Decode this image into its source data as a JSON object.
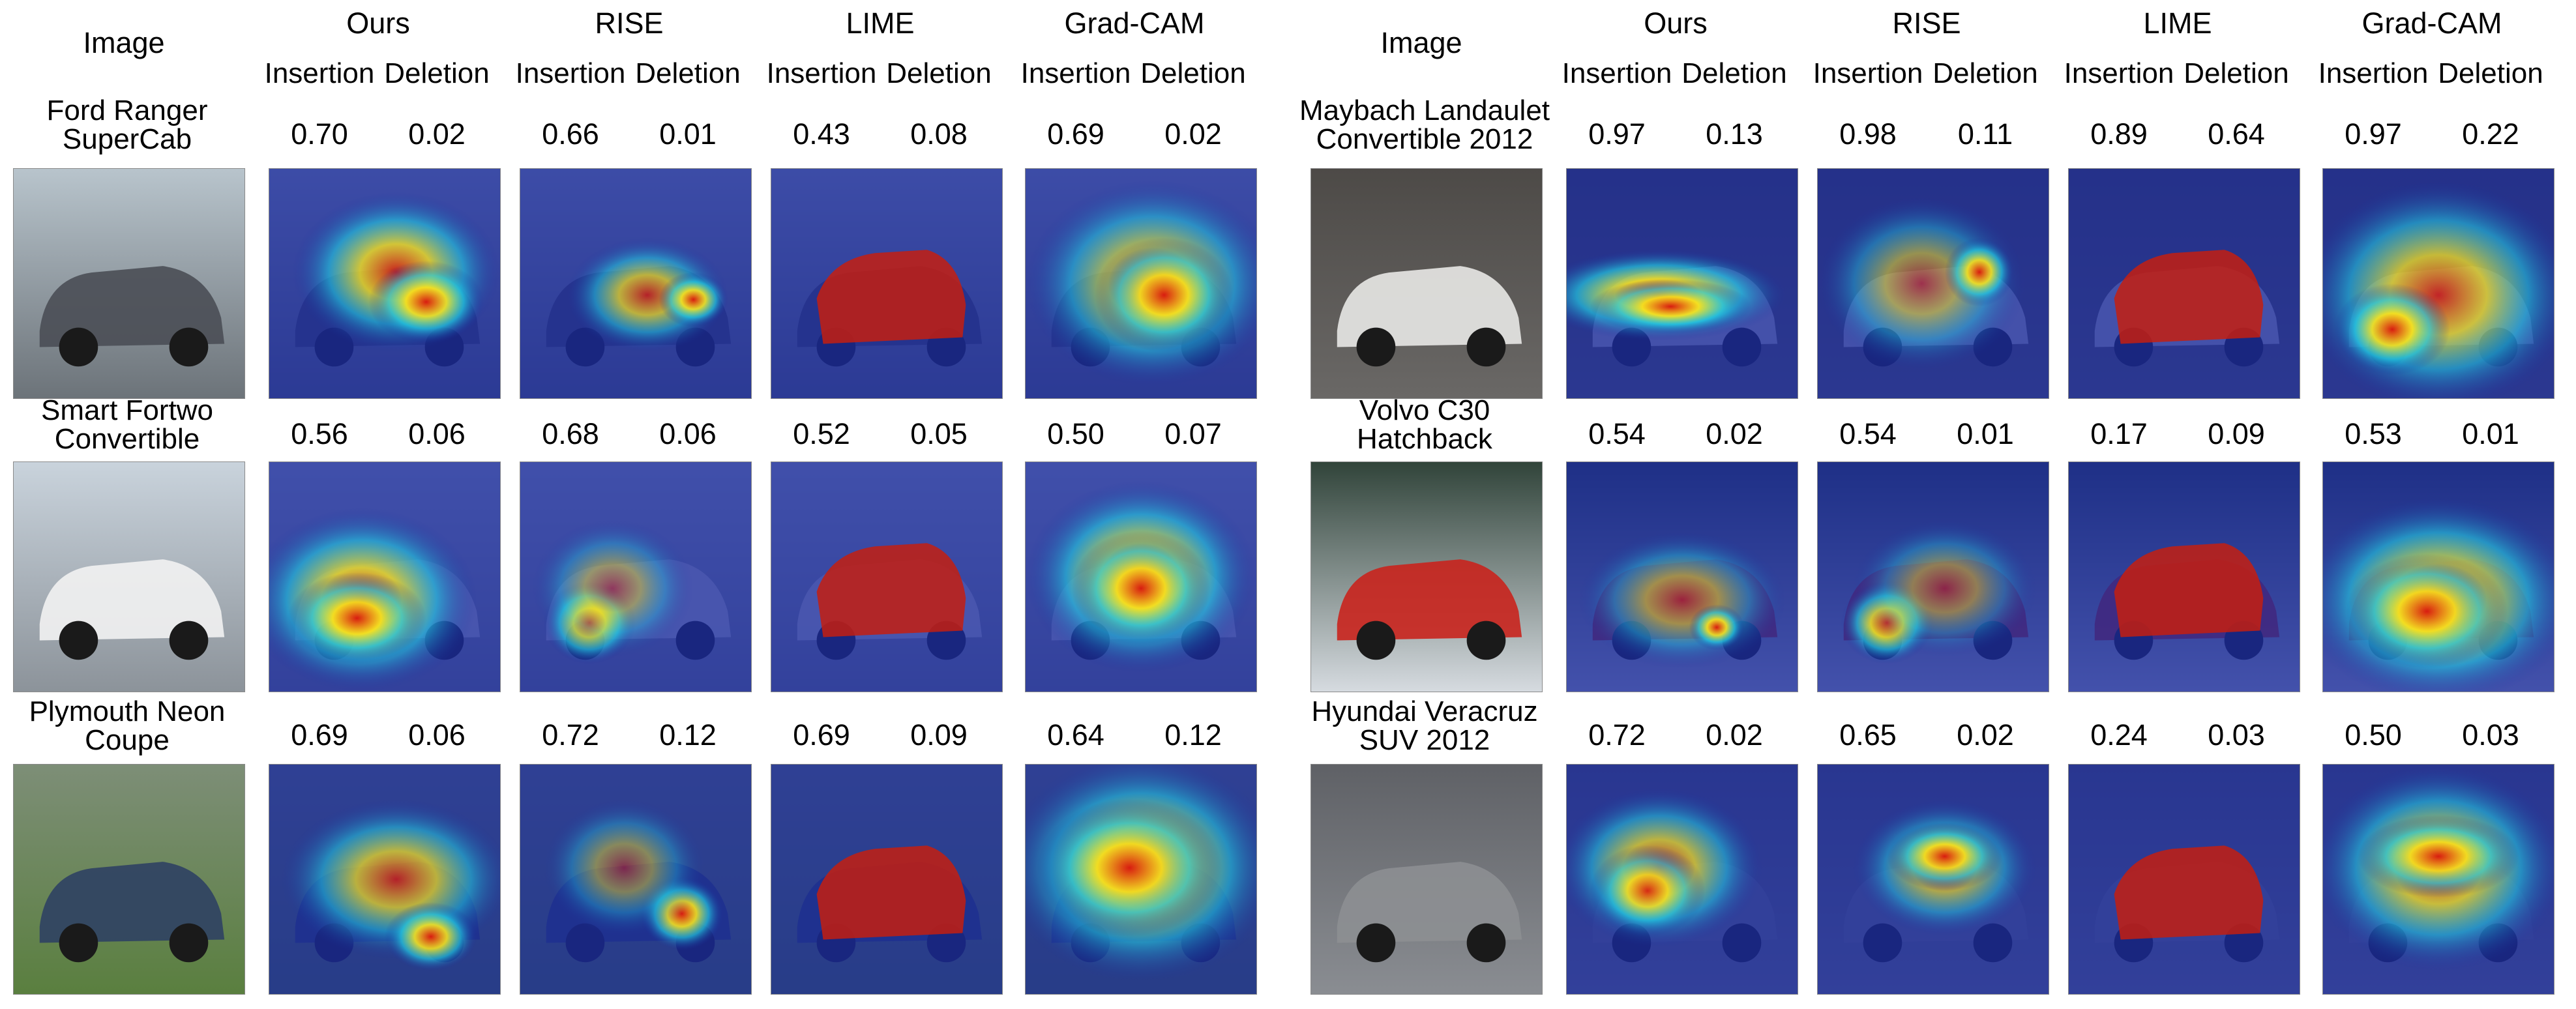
{
  "columns": {
    "image": "Image",
    "methods": [
      "Ours",
      "RISE",
      "LIME",
      "Grad-CAM"
    ],
    "metrics": [
      "Insertion",
      "Deletion"
    ]
  },
  "panels": [
    {
      "rows": [
        {
          "label": [
            "Ford Ranger",
            "SuperCab"
          ],
          "scores": [
            [
              "0.70",
              "0.02"
            ],
            [
              "0.66",
              "0.01"
            ],
            [
              "0.43",
              "0.08"
            ],
            [
              "0.69",
              "0.02"
            ]
          ]
        },
        {
          "label": [
            "Smart Fortwo",
            "Convertible"
          ],
          "scores": [
            [
              "0.56",
              "0.06"
            ],
            [
              "0.68",
              "0.06"
            ],
            [
              "0.52",
              "0.05"
            ],
            [
              "0.50",
              "0.07"
            ]
          ]
        },
        {
          "label": [
            "Plymouth Neon",
            "Coupe"
          ],
          "scores": [
            [
              "0.69",
              "0.06"
            ],
            [
              "0.72",
              "0.12"
            ],
            [
              "0.69",
              "0.09"
            ],
            [
              "0.64",
              "0.12"
            ]
          ]
        }
      ]
    },
    {
      "rows": [
        {
          "label": [
            "Maybach Landaulet",
            "Convertible 2012"
          ],
          "scores": [
            [
              "0.97",
              "0.13"
            ],
            [
              "0.98",
              "0.11"
            ],
            [
              "0.89",
              "0.64"
            ],
            [
              "0.97",
              "0.22"
            ]
          ]
        },
        {
          "label": [
            "Volvo C30",
            "Hatchback"
          ],
          "scores": [
            [
              "0.54",
              "0.02"
            ],
            [
              "0.54",
              "0.01"
            ],
            [
              "0.17",
              "0.09"
            ],
            [
              "0.53",
              "0.01"
            ]
          ]
        },
        {
          "label": [
            "Hyundai Veracruz",
            "SUV 2012"
          ],
          "scores": [
            [
              "0.72",
              "0.02"
            ],
            [
              "0.65",
              "0.02"
            ],
            [
              "0.24",
              "0.03"
            ],
            [
              "0.50",
              "0.03"
            ]
          ]
        }
      ]
    }
  ],
  "colors": {
    "heat_low": "#1a2a9c",
    "heat_mid": "#22c7e0",
    "heat_high": "#d81c10",
    "lime_mask": "#c41f10"
  },
  "thumbnail_subjects": [
    [
      "gray pickup truck at dealership",
      "white smart car at gate",
      "blue sedan on grass"
    ],
    [
      "white convertible car",
      "red hatchback in snow",
      "silver SUV at auto show"
    ]
  ]
}
